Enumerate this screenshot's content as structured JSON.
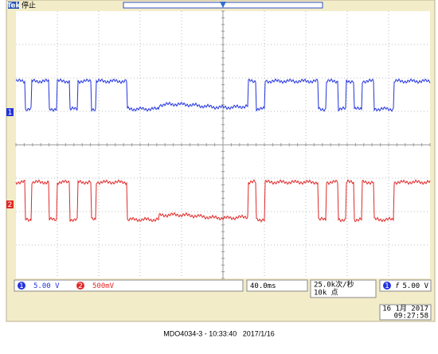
{
  "header": {
    "brand": "Tek",
    "status": "停止"
  },
  "channels": [
    {
      "marker": "1",
      "scale": "5.00 V"
    },
    {
      "marker": "2",
      "scale": "500mV"
    }
  ],
  "timebase": "40.0ms",
  "sample_rate": "25.0k次/秒",
  "record_length": "10k 点",
  "trigger": {
    "source": "1",
    "slope": "f",
    "level": "5.00 V"
  },
  "screen_date": "16 1月 2017",
  "screen_time": "09:27:58",
  "caption": "MDO4034-3 - 10:33:40   2017/1/16"
}
